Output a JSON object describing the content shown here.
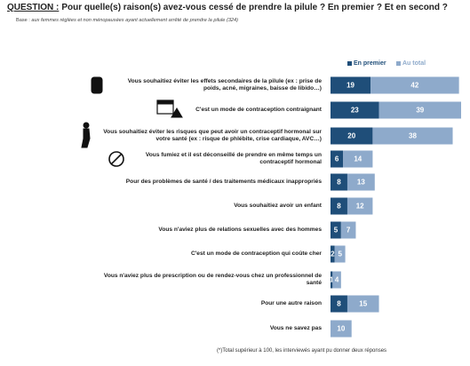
{
  "chart_data": {
    "type": "stacked-bar-horizontal",
    "title_prefix": "QUESTION :",
    "title": "Pour quelle(s) raison(s) avez-vous cessé de prendre la pilule ? En premier ? Et en second ?",
    "base_prefix": "Base :",
    "base": "aux femmes réglées et non ménopausées ayant actuellement arrêté de prendre la pilule (324)",
    "footnote": "(*)Total supérieur à 100, les interviewés ayant pu donner deux réponses",
    "categories": [
      "Vous souhaitiez éviter les effets secondaires de la pilule (ex : prise de poids, acné, migraines, baisse de libido…)",
      "C'est un mode de contraception contraignant",
      "Vous souhaitiez éviter les risques que peut avoir un contraceptif hormonal sur votre santé (ex : risque de phlébite, crise cardiaque, AVC…)",
      "Vous fumiez et il est déconseillé de prendre en même temps un contraceptif hormonal",
      "Pour des problèmes de santé / des traitements médicaux inappropriés",
      "Vous souhaitiez avoir un enfant",
      "Vous n'aviez plus de relations sexuelles avec des hommes",
      "C'est un mode de contraception qui coûte cher",
      "Vous n'aviez plus de prescription ou de rendez-vous chez un professionnel de santé",
      "Pour une autre raison",
      "Vous ne savez pas"
    ],
    "series": [
      {
        "name": "En premier",
        "color": "#1f4e79",
        "values": [
          19,
          23,
          20,
          6,
          8,
          8,
          5,
          2,
          1,
          8,
          null
        ]
      },
      {
        "name": "Au total",
        "color": "#8eaacb",
        "values": [
          42,
          39,
          38,
          14,
          13,
          12,
          7,
          5,
          4,
          15,
          10
        ]
      }
    ],
    "xlim": [
      0,
      62
    ]
  }
}
